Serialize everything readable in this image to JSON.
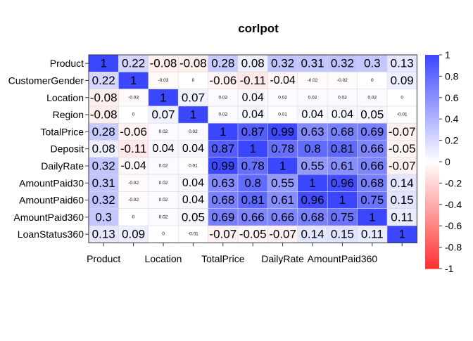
{
  "chart_data": {
    "type": "heatmap",
    "title": "corlpot",
    "rows": [
      "Product",
      "CustomerGender",
      "Location",
      "Region",
      "TotalPrice",
      "Deposit",
      "DailyRate",
      "AmountPaid30",
      "AmountPaid60",
      "AmountPaid360",
      "LoanStatus360"
    ],
    "x_tick_labels": [
      "Product",
      "",
      "Location",
      "",
      "TotalPrice",
      "",
      "DailyRate",
      "",
      "AmountPaid360",
      "",
      ""
    ],
    "value_labels": [
      [
        "1",
        "0.22",
        "-0.08",
        "-0.08",
        "0.28",
        "0.08",
        "0.32",
        "0.31",
        "0.32",
        "0.3",
        "0.13"
      ],
      [
        "0.22",
        "1",
        "-0.03",
        "0",
        "-0.06",
        "-0.11",
        "-0.04",
        "-0.02",
        "-0.02",
        "0",
        "0.09"
      ],
      [
        "-0.08",
        "-0.03",
        "1",
        "0.07",
        "0.02",
        "0.04",
        "0.02",
        "0.02",
        "0.02",
        "0.02",
        "0"
      ],
      [
        "-0.08",
        "0",
        "0.07",
        "1",
        "0.02",
        "0.04",
        "0.01",
        "0.04",
        "0.04",
        "0.05",
        "-0.01"
      ],
      [
        "0.28",
        "-0.06",
        "0.02",
        "0.02",
        "1",
        "0.87",
        "0.99",
        "0.63",
        "0.68",
        "0.69",
        "-0.07"
      ],
      [
        "0.08",
        "-0.11",
        "0.04",
        "0.04",
        "0.87",
        "1",
        "0.78",
        "0.8",
        "0.81",
        "0.66",
        "-0.05"
      ],
      [
        "0.32",
        "-0.04",
        "0.02",
        "0.01",
        "0.99",
        "0.78",
        "1",
        "0.55",
        "0.61",
        "0.66",
        "-0.07"
      ],
      [
        "0.31",
        "-0.02",
        "0.02",
        "0.04",
        "0.63",
        "0.8",
        "0.55",
        "1",
        "0.96",
        "0.68",
        "0.14"
      ],
      [
        "0.32",
        "-0.02",
        "0.02",
        "0.04",
        "0.68",
        "0.81",
        "0.61",
        "0.96",
        "1",
        "0.75",
        "0.15"
      ],
      [
        "0.3",
        "0",
        "0.02",
        "0.05",
        "0.69",
        "0.66",
        "0.66",
        "0.68",
        "0.75",
        "1",
        "0.11"
      ],
      [
        "0.13",
        "0.09",
        "0",
        "-0.01",
        "-0.07",
        "-0.05",
        "-0.07",
        "0.14",
        "0.15",
        "0.11",
        "1"
      ]
    ],
    "colorbar": {
      "range": [
        -1,
        1
      ],
      "tick_labels": [
        "1",
        "0.8",
        "0.6",
        "0.4",
        "0.2",
        "0",
        "-0.2",
        "-0.4",
        "-0.6",
        "-0.8",
        "-1"
      ],
      "colors": {
        "positive": "#3b46ff",
        "neutral": "#ffffff",
        "negative": "#ff3030"
      }
    },
    "grid": true,
    "legend": "right"
  }
}
